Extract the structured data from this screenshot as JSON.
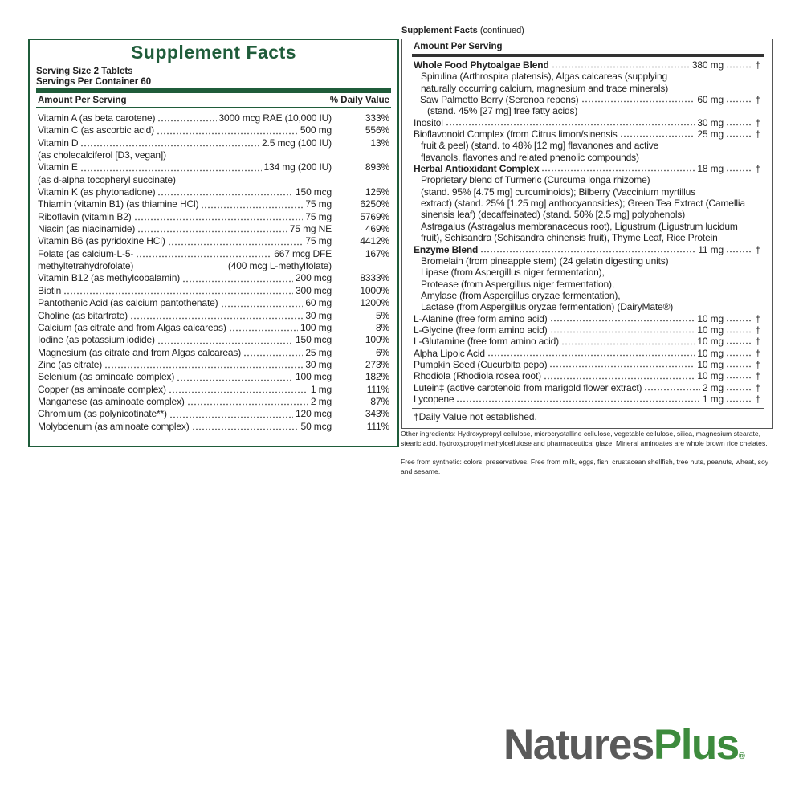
{
  "left": {
    "title": "Supplement Facts",
    "serving_size": "Serving Size 2 Tablets",
    "servings": "Servings Per Container 60",
    "header_amount": "Amount Per Serving",
    "header_dv": "% Daily Value",
    "rows": [
      {
        "name": "Vitamin A (as beta carotene)",
        "amount": "3000 mcg RAE (10,000 IU)",
        "dv": "333%"
      },
      {
        "name": "Vitamin C (as ascorbic acid)",
        "amount": "500 mg",
        "dv": "556%"
      },
      {
        "name": "Vitamin D",
        "amount": "2.5 mcg (100 IU)",
        "dv": "13%",
        "sub": "(as cholecalciferol [D3, vegan])"
      },
      {
        "name": "Vitamin E",
        "amount": "134 mg (200 IU)",
        "dv": "893%",
        "sub": "(as d-alpha tocopheryl succinate)"
      },
      {
        "name": "Vitamin K (as phytonadione)",
        "amount": "150 mcg",
        "dv": "125%"
      },
      {
        "name": "Thiamin (vitamin B1) (as thiamine HCl)",
        "amount": "75 mg",
        "dv": "6250%"
      },
      {
        "name": "Riboflavin (vitamin B2)",
        "amount": "75 mg",
        "dv": "5769%"
      },
      {
        "name": "Niacin (as niacinamide)",
        "amount": "75 mg NE",
        "dv": "469%"
      },
      {
        "name": "Vitamin B6 (as pyridoxine HCl)",
        "amount": "75 mg",
        "dv": "4412%"
      },
      {
        "name": "Folate (as calcium-L-5-",
        "amount": "667 mcg DFE",
        "dv": "167%",
        "sub": "methyltetrahydrofolate)",
        "sub_amount": "(400 mcg L-methylfolate)"
      },
      {
        "name": "Vitamin B12 (as methylcobalamin)",
        "amount": "200 mcg",
        "dv": "8333%"
      },
      {
        "name": "Biotin",
        "amount": "300 mcg",
        "dv": "1000%"
      },
      {
        "name": "Pantothenic Acid (as calcium pantothenate)",
        "amount": "60 mg",
        "dv": "1200%"
      },
      {
        "name": "Choline (as bitartrate)",
        "amount": "30 mg",
        "dv": "5%"
      },
      {
        "name": "Calcium (as citrate and from Algas calcareas)",
        "amount": "100 mg",
        "dv": "8%"
      },
      {
        "name": "Iodine (as potassium iodide)",
        "amount": "150 mcg",
        "dv": "100%"
      },
      {
        "name": "Magnesium (as citrate and from Algas calcareas)",
        "amount": "25 mg",
        "dv": "6%"
      },
      {
        "name": "Zinc (as citrate)",
        "amount": "30 mg",
        "dv": "273%"
      },
      {
        "name": "Selenium (as aminoate complex)",
        "amount": "100 mcg",
        "dv": "182%"
      },
      {
        "name": "Copper (as aminoate complex)",
        "amount": "1 mg",
        "dv": "111%"
      },
      {
        "name": "Manganese (as aminoate complex)",
        "amount": "2 mg",
        "dv": "87%"
      },
      {
        "name": "Chromium (as polynicotinate**)",
        "amount": "120 mcg",
        "dv": "343%"
      },
      {
        "name": "Molybdenum (as aminoate complex)",
        "amount": "50 mcg",
        "dv": "111%"
      }
    ]
  },
  "right": {
    "caption_bold": "Supplement Facts",
    "caption_rest": "(continued)",
    "header_amount": "Amount Per Serving",
    "rows": [
      {
        "name": "Whole Food Phytoalgae Blend",
        "amount": "380 mg",
        "dv": "†",
        "bold": true,
        "sub": [
          "Spirulina (Arthrospira platensis), Algas calcareas (supplying",
          "naturally occurring calcium, magnesium and trace minerals)"
        ],
        "components": [
          {
            "name": "Saw Palmetto Berry (Serenoa repens)",
            "amount": "60 mg",
            "dv": "†",
            "sub": [
              "(stand. 45% [27 mg] free fatty acids)"
            ]
          }
        ]
      },
      {
        "name": "Inositol",
        "amount": "30 mg",
        "dv": "†"
      },
      {
        "name": "Bioflavonoid Complex (from Citrus limon/sinensis",
        "amount": "25 mg",
        "dv": "†",
        "sub": [
          "fruit & peel) (stand. to 48% [12 mg] flavanones and active",
          "flavanols, flavones and related phenolic compounds)"
        ]
      },
      {
        "name": "Herbal Antioxidant Complex",
        "amount": "18 mg",
        "dv": "†",
        "bold": true,
        "sub": [
          "Proprietary blend of Turmeric (Curcuma longa rhizome)",
          "(stand. 95% [4.75 mg] curcuminoids); Bilberry (Vaccinium myrtillus",
          "extract) (stand. 25% [1.25 mg] anthocyanosides); Green Tea Extract (Camellia",
          "sinensis leaf) (decaffeinated) (stand. 50% [2.5 mg] polyphenols)",
          "Astragalus (Astragalus membranaceous root), Ligustrum (Ligustrum lucidum",
          "fruit), Schisandra (Schisandra chinensis fruit), Thyme Leaf, Rice Protein"
        ]
      },
      {
        "name": "Enzyme Blend",
        "amount": "11 mg",
        "dv": "†",
        "bold": true,
        "sub": [
          "Bromelain (from pineapple stem) (24 gelatin digesting units)",
          "Lipase (from Aspergillus niger fermentation),",
          "Protease (from Aspergillus niger fermentation),",
          "Amylase (from Aspergillus oryzae fermentation),",
          "Lactase (from Aspergillus oryzae fermentation) (DairyMate®)"
        ]
      },
      {
        "name": "L-Alanine (free form amino acid)",
        "amount": "10 mg",
        "dv": "†"
      },
      {
        "name": "L-Glycine (free form amino acid)",
        "amount": "10 mg",
        "dv": "†"
      },
      {
        "name": "L-Glutamine (free form amino acid)",
        "amount": "10 mg",
        "dv": "†"
      },
      {
        "name": "Alpha Lipoic Acid",
        "amount": "10 mg",
        "dv": "†"
      },
      {
        "name": "Pumpkin Seed (Cucurbita pepo)",
        "amount": "10 mg",
        "dv": "†"
      },
      {
        "name": "Rhodiola (Rhodiola rosea root)",
        "amount": "10 mg",
        "dv": "†"
      },
      {
        "name": "Lutein‡ (active carotenoid from marigold flower extract)",
        "amount": "2 mg",
        "dv": "†"
      },
      {
        "name": "Lycopene",
        "amount": "1 mg",
        "dv": "†"
      }
    ],
    "footnote": "†Daily Value not established.",
    "other_ingredients": "Other ingredients: Hydroxypropyl cellulose, microcrystalline cellulose, vegetable cellulose, silica, magnesium stearate, stearic acid, hydroxypropyl methylcellulose and pharmaceutical glaze. Mineral aminoates are whole brown rice chelates.",
    "free_from": "Free from synthetic: colors, preservatives. Free from milk, eggs, fish, crustacean shellfish, tree nuts, peanuts, wheat, soy and sesame."
  },
  "logo": {
    "part1": "Natures",
    "part2": "Plus",
    "mark": "®"
  }
}
